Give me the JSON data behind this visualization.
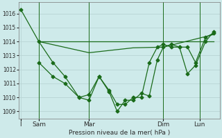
{
  "background_color": "#ceeaea",
  "grid_color": "#b8d4d4",
  "line_color": "#1a6b1a",
  "xlabel": "Pression niveau de la mer( hPa )",
  "ylim": [
    1008.5,
    1016.8
  ],
  "yticks": [
    1009,
    1010,
    1011,
    1012,
    1013,
    1014,
    1015,
    1016
  ],
  "xlim": [
    0,
    10.0
  ],
  "x_tick_positions": [
    0.1,
    1.0,
    3.5,
    7.2,
    9.0
  ],
  "x_tick_labels": [
    "I",
    "Sam",
    "Mar",
    "Dim",
    "Lun"
  ],
  "x_vlines": [
    1.0,
    3.5,
    7.2,
    9.0
  ],
  "series1_x": [
    0.1,
    1.0,
    1.7,
    2.3,
    3.0,
    3.5,
    4.0,
    4.5,
    4.9,
    5.3,
    5.7,
    6.1,
    6.5,
    6.9,
    7.2,
    7.6,
    8.0,
    8.4,
    8.8,
    9.3,
    9.7
  ],
  "series1_y": [
    1016.3,
    1014.0,
    1012.5,
    1011.5,
    1010.0,
    1009.8,
    1011.5,
    1010.4,
    1009.0,
    1009.8,
    1009.8,
    1010.3,
    1010.1,
    1012.7,
    1013.6,
    1013.8,
    1013.6,
    1011.7,
    1012.3,
    1014.0,
    1014.7
  ],
  "series2_x": [
    1.0,
    9.7
  ],
  "series2_y": [
    1014.0,
    1014.0
  ],
  "series3_x": [
    1.0,
    3.5,
    5.7,
    7.2,
    9.7
  ],
  "series3_y": [
    1014.0,
    1013.2,
    1013.55,
    1013.6,
    1014.5
  ],
  "series4_x": [
    1.0,
    1.7,
    2.3,
    3.0,
    3.5,
    4.0,
    4.5,
    4.9,
    5.3,
    5.7,
    6.1,
    6.5,
    6.9,
    7.2,
    7.6,
    8.0,
    8.4,
    8.8,
    9.3,
    9.7
  ],
  "series4_y": [
    1012.5,
    1011.5,
    1011.0,
    1010.0,
    1010.2,
    1011.5,
    1010.5,
    1009.5,
    1009.5,
    1010.0,
    1010.0,
    1012.5,
    1013.6,
    1013.8,
    1013.6,
    1013.6,
    1013.6,
    1012.5,
    1014.3,
    1014.6
  ]
}
